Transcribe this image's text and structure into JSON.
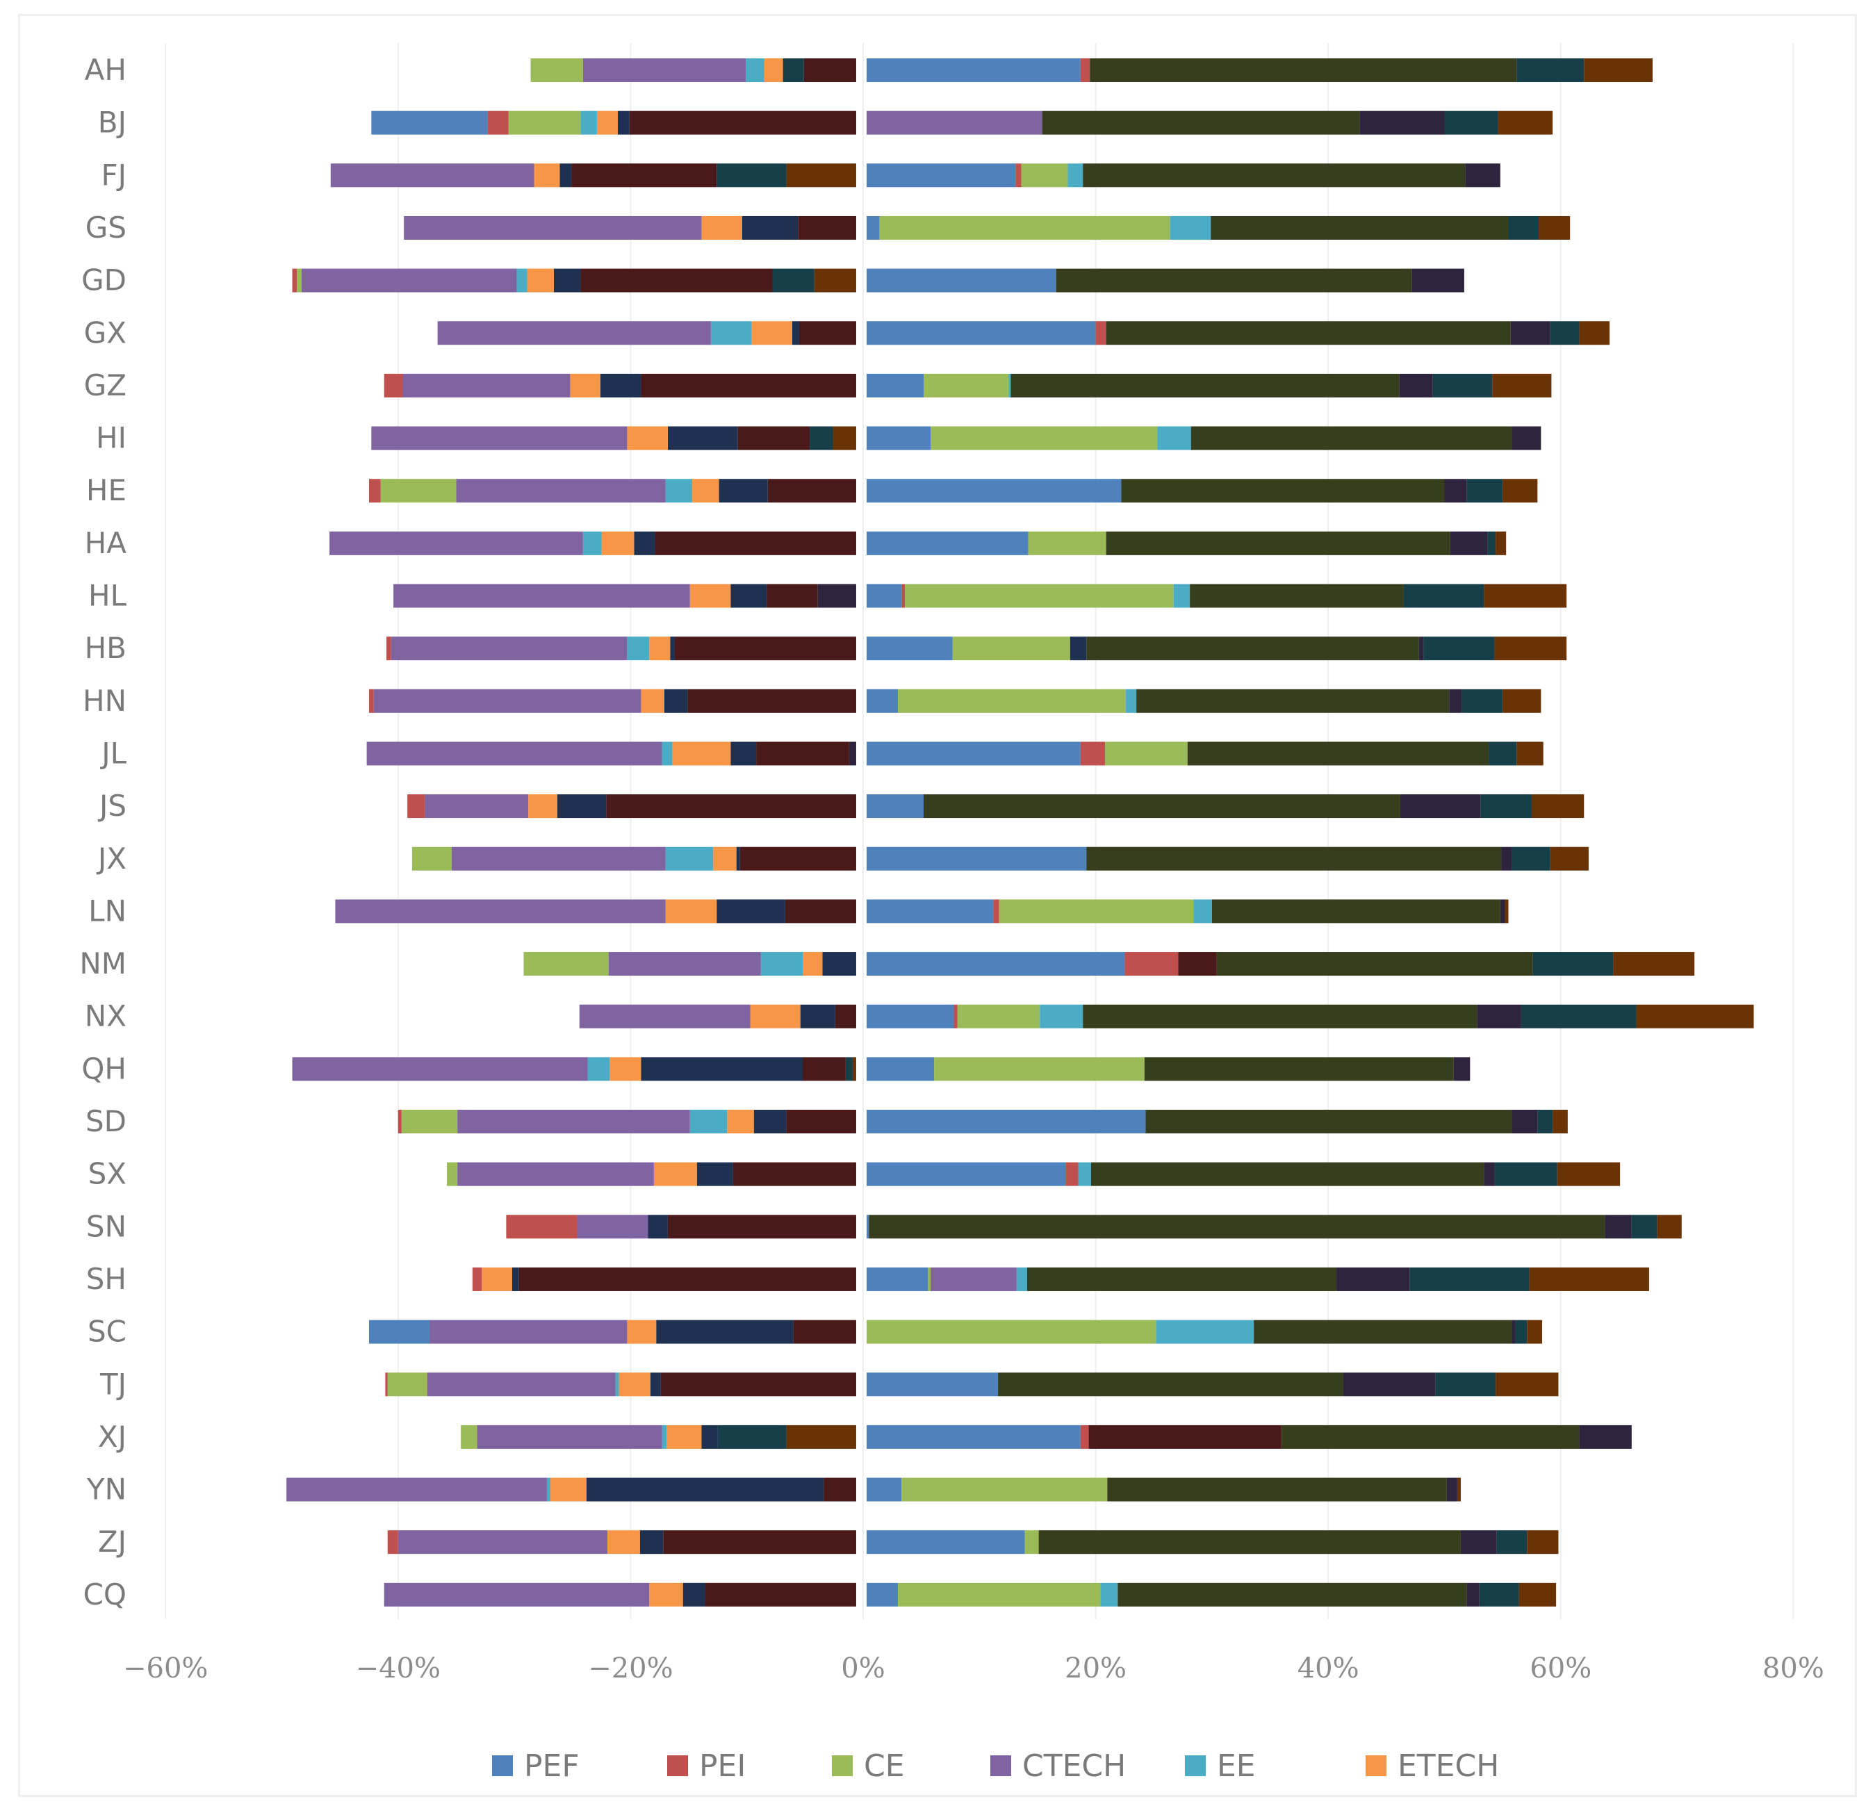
{
  "chart_data": {
    "type": "bar",
    "orientation": "horizontal",
    "stacked": true,
    "xlim": [
      -60,
      80
    ],
    "x_ticks": [
      "−60%",
      "−40%",
      "−20%",
      "0%",
      "20%",
      "40%",
      "60%",
      "80%"
    ],
    "x_tick_values": [
      -60,
      -40,
      -20,
      0,
      20,
      40,
      60,
      80
    ],
    "grid": "vertical",
    "legend_position": "bottom",
    "legend": [
      "PEF",
      "PEI",
      "CE",
      "CTECH",
      "EE",
      "ETECH"
    ],
    "categories": [
      "AH",
      "BJ",
      "FJ",
      "GS",
      "GD",
      "GX",
      "GZ",
      "HI",
      "HE",
      "HA",
      "HL",
      "HB",
      "HN",
      "JL",
      "JS",
      "JX",
      "LN",
      "NM",
      "NX",
      "QH",
      "SD",
      "SX",
      "SN",
      "SH",
      "SC",
      "TJ",
      "XJ",
      "YN",
      "ZJ",
      "CQ"
    ],
    "series_colors": [
      "#4f81bd",
      "#c0504d",
      "#9bbb59",
      "#8064a2",
      "#4bacc6",
      "#f79646",
      "#1f3150",
      "#4a1a1a",
      "#2e243e",
      "#173f4a",
      "#363e1e",
      "#6a3305"
    ],
    "negative_segments": [
      [
        [
          7,
          4.5
        ],
        [
          9,
          1.8
        ],
        [
          5,
          1.6
        ],
        [
          4,
          1.6
        ],
        [
          3,
          14
        ],
        [
          2,
          4.5
        ]
      ],
      [
        [
          7,
          19.5
        ],
        [
          6,
          1
        ],
        [
          5,
          1.8
        ],
        [
          4,
          1.4
        ],
        [
          2,
          6.2
        ],
        [
          1,
          1.8
        ],
        [
          0,
          10
        ]
      ],
      [
        [
          11,
          6
        ],
        [
          9,
          6
        ],
        [
          7,
          12.5
        ],
        [
          6,
          1
        ],
        [
          5,
          2.2
        ],
        [
          3,
          17.5
        ]
      ],
      [
        [
          7,
          5
        ],
        [
          6,
          4.8
        ],
        [
          5,
          3.5
        ],
        [
          3,
          25.6
        ]
      ],
      [
        [
          11,
          3.6
        ],
        [
          9,
          3.6
        ],
        [
          7,
          16.5
        ],
        [
          6,
          2.3
        ],
        [
          5,
          2.3
        ],
        [
          4,
          0.9
        ],
        [
          3,
          18.5
        ],
        [
          2,
          0.4
        ],
        [
          1,
          0.4
        ]
      ],
      [
        [
          7,
          4.9
        ],
        [
          6,
          0.6
        ],
        [
          5,
          3.5
        ],
        [
          4,
          3.5
        ],
        [
          3,
          23.5
        ]
      ],
      [
        [
          7,
          18.5
        ],
        [
          6,
          3.5
        ],
        [
          5,
          2.6
        ],
        [
          3,
          14.4
        ],
        [
          1,
          1.6
        ]
      ],
      [
        [
          11,
          2
        ],
        [
          9,
          2
        ],
        [
          7,
          6.2
        ],
        [
          6,
          6
        ],
        [
          5,
          3.5
        ],
        [
          3,
          22
        ]
      ],
      [
        [
          7,
          7.6
        ],
        [
          6,
          4.2
        ],
        [
          5,
          2.3
        ],
        [
          4,
          2.3
        ],
        [
          3,
          18
        ],
        [
          2,
          6.5
        ],
        [
          1,
          1
        ]
      ],
      [
        [
          7,
          17.3
        ],
        [
          6,
          1.8
        ],
        [
          5,
          2.8
        ],
        [
          4,
          1.6
        ],
        [
          3,
          21.8
        ]
      ],
      [
        [
          8,
          3.3
        ],
        [
          7,
          4.4
        ],
        [
          6,
          3.1
        ],
        [
          5,
          3.5
        ],
        [
          3,
          25.5
        ]
      ],
      [
        [
          7,
          15.6
        ],
        [
          6,
          0.4
        ],
        [
          5,
          1.8
        ],
        [
          4,
          1.9
        ],
        [
          3,
          20.3
        ],
        [
          1,
          0.4
        ]
      ],
      [
        [
          7,
          14.5
        ],
        [
          6,
          2
        ],
        [
          5,
          2
        ],
        [
          3,
          23
        ],
        [
          1,
          0.4
        ]
      ],
      [
        [
          8,
          0.6
        ],
        [
          7,
          8
        ],
        [
          6,
          2.2
        ],
        [
          5,
          5
        ],
        [
          4,
          0.9
        ],
        [
          3,
          25.4
        ]
      ],
      [
        [
          7,
          21.5
        ],
        [
          6,
          4.2
        ],
        [
          5,
          2.5
        ],
        [
          3,
          8.9
        ],
        [
          1,
          1.5
        ]
      ],
      [
        [
          7,
          10
        ],
        [
          6,
          0.3
        ],
        [
          5,
          2
        ],
        [
          4,
          4.1
        ],
        [
          3,
          18.4
        ],
        [
          2,
          3.4
        ]
      ],
      [
        [
          7,
          6.1
        ],
        [
          6,
          5.9
        ],
        [
          5,
          4.4
        ],
        [
          3,
          28.4
        ]
      ],
      [
        [
          6,
          2.9
        ],
        [
          5,
          1.7
        ],
        [
          4,
          3.6
        ],
        [
          3,
          13.1
        ],
        [
          2,
          7.3
        ]
      ],
      [
        [
          7,
          1.8
        ],
        [
          6,
          3
        ],
        [
          5,
          4.3
        ],
        [
          3,
          14.7
        ]
      ],
      [
        [
          11,
          0.3
        ],
        [
          9,
          0.6
        ],
        [
          7,
          3.7
        ],
        [
          6,
          13.9
        ],
        [
          5,
          2.7
        ],
        [
          4,
          1.9
        ],
        [
          3,
          25.4
        ]
      ],
      [
        [
          7,
          6
        ],
        [
          6,
          2.8
        ],
        [
          5,
          2.3
        ],
        [
          4,
          3.2
        ],
        [
          3,
          20
        ],
        [
          2,
          4.8
        ],
        [
          1,
          0.3
        ]
      ],
      [
        [
          7,
          10.6
        ],
        [
          6,
          3.1
        ],
        [
          5,
          3.7
        ],
        [
          3,
          16.9
        ],
        [
          2,
          0.9
        ]
      ],
      [
        [
          7,
          16.2
        ],
        [
          6,
          1.7
        ],
        [
          3,
          6.1
        ],
        [
          1,
          6.1
        ]
      ],
      [
        [
          7,
          29
        ],
        [
          6,
          0.6
        ],
        [
          5,
          2.6
        ],
        [
          1,
          0.8
        ]
      ],
      [
        [
          7,
          5.4
        ],
        [
          6,
          11.8
        ],
        [
          5,
          2.5
        ],
        [
          3,
          17
        ],
        [
          0,
          5.2
        ]
      ],
      [
        [
          7,
          16.8
        ],
        [
          6,
          0.9
        ],
        [
          5,
          2.7
        ],
        [
          4,
          0.3
        ],
        [
          3,
          16.2
        ],
        [
          2,
          3.4
        ],
        [
          1,
          0.2
        ]
      ],
      [
        [
          11,
          6
        ],
        [
          9,
          5.9
        ],
        [
          6,
          1.4
        ],
        [
          5,
          3
        ],
        [
          4,
          0.4
        ],
        [
          3,
          15.9
        ],
        [
          2,
          1.4
        ]
      ],
      [
        [
          7,
          2.8
        ],
        [
          6,
          20.4
        ],
        [
          5,
          3.1
        ],
        [
          4,
          0.3
        ],
        [
          3,
          22.4
        ]
      ],
      [
        [
          7,
          16.6
        ],
        [
          6,
          2
        ],
        [
          5,
          2.8
        ],
        [
          3,
          18
        ],
        [
          1,
          0.9
        ]
      ],
      [
        [
          7,
          13
        ],
        [
          6,
          1.9
        ],
        [
          5,
          2.9
        ],
        [
          3,
          22.8
        ]
      ]
    ],
    "positive_segments": [
      [
        [
          0,
          18.4
        ],
        [
          1,
          0.8
        ],
        [
          10,
          36.7
        ],
        [
          9,
          5.8
        ],
        [
          11,
          5.9
        ]
      ],
      [
        [
          3,
          15.1
        ],
        [
          10,
          27.3
        ],
        [
          8,
          7.3
        ],
        [
          9,
          4.6
        ],
        [
          11,
          4.7
        ]
      ],
      [
        [
          0,
          12.8
        ],
        [
          1,
          0.5
        ],
        [
          2,
          4
        ],
        [
          4,
          1.3
        ],
        [
          10,
          32.9
        ],
        [
          8,
          3
        ]
      ],
      [
        [
          0,
          1.1
        ],
        [
          2,
          25
        ],
        [
          4,
          3.5
        ],
        [
          10,
          25.6
        ],
        [
          9,
          2.6
        ],
        [
          11,
          2.7
        ]
      ],
      [
        [
          0,
          16.3
        ],
        [
          10,
          30.6
        ],
        [
          8,
          4.5
        ]
      ],
      [
        [
          0,
          19.7
        ],
        [
          1,
          0.9
        ],
        [
          10,
          34.8
        ],
        [
          8,
          3.4
        ],
        [
          9,
          2.5
        ],
        [
          11,
          2.6
        ]
      ],
      [
        [
          0,
          4.9
        ],
        [
          2,
          7.3
        ],
        [
          4,
          0.2
        ],
        [
          10,
          33.4
        ],
        [
          8,
          2.9
        ],
        [
          9,
          5.1
        ],
        [
          11,
          5.1
        ]
      ],
      [
        [
          0,
          5.5
        ],
        [
          2,
          19.5
        ],
        [
          4,
          2.9
        ],
        [
          10,
          27.6
        ],
        [
          8,
          2.5
        ]
      ],
      [
        [
          0,
          21.9
        ],
        [
          10,
          27.8
        ],
        [
          8,
          1.9
        ],
        [
          9,
          3.1
        ],
        [
          11,
          3
        ]
      ],
      [
        [
          0,
          13.9
        ],
        [
          2,
          6.7
        ],
        [
          10,
          29.6
        ],
        [
          8,
          3.2
        ],
        [
          9,
          0.7
        ],
        [
          11,
          0.9
        ]
      ],
      [
        [
          0,
          3
        ],
        [
          1,
          0.3
        ],
        [
          2,
          23.1
        ],
        [
          4,
          1.4
        ],
        [
          10,
          18.4
        ],
        [
          9,
          6.9
        ],
        [
          11,
          7.1
        ]
      ],
      [
        [
          0,
          7.4
        ],
        [
          2,
          10.1
        ],
        [
          6,
          1.4
        ],
        [
          10,
          28.6
        ],
        [
          8,
          0.4
        ],
        [
          9,
          6.1
        ],
        [
          11,
          6.2
        ]
      ],
      [
        [
          0,
          2.7
        ],
        [
          2,
          19.6
        ],
        [
          4,
          0.9
        ],
        [
          10,
          26.9
        ],
        [
          8,
          1.1
        ],
        [
          9,
          3.5
        ],
        [
          11,
          3.3
        ]
      ],
      [
        [
          0,
          18.4
        ],
        [
          1,
          2.1
        ],
        [
          2,
          7.1
        ],
        [
          10,
          25.9
        ],
        [
          9,
          2.4
        ],
        [
          11,
          2.3
        ]
      ],
      [
        [
          0,
          4.9
        ],
        [
          10,
          41
        ],
        [
          8,
          6.9
        ],
        [
          9,
          4.4
        ],
        [
          11,
          4.5
        ]
      ],
      [
        [
          0,
          18.9
        ],
        [
          10,
          35.7
        ],
        [
          8,
          0.9
        ],
        [
          9,
          3.3
        ],
        [
          11,
          3.3
        ]
      ],
      [
        [
          0,
          10.9
        ],
        [
          1,
          0.5
        ],
        [
          2,
          16.7
        ],
        [
          4,
          1.6
        ],
        [
          10,
          24.8
        ],
        [
          8,
          0.4
        ],
        [
          11,
          0.3
        ]
      ],
      [
        [
          0,
          22.2
        ],
        [
          1,
          4.6
        ],
        [
          7,
          3.3
        ],
        [
          10,
          27.2
        ],
        [
          9,
          6.9
        ],
        [
          11,
          7
        ]
      ],
      [
        [
          0,
          7.5
        ],
        [
          1,
          0.3
        ],
        [
          2,
          7.1
        ],
        [
          4,
          3.7
        ],
        [
          10,
          33.9
        ],
        [
          8,
          3.8
        ],
        [
          9,
          9.9
        ],
        [
          11,
          10.1
        ]
      ],
      [
        [
          0,
          5.8
        ],
        [
          2,
          18.1
        ],
        [
          10,
          26.6
        ],
        [
          8,
          1.4
        ]
      ],
      [
        [
          0,
          24
        ],
        [
          10,
          31.5
        ],
        [
          8,
          2.2
        ],
        [
          9,
          1.3
        ],
        [
          11,
          1.3
        ]
      ],
      [
        [
          0,
          17.1
        ],
        [
          1,
          1.1
        ],
        [
          4,
          1.1
        ],
        [
          10,
          33.8
        ],
        [
          8,
          0.9
        ],
        [
          9,
          5.4
        ],
        [
          11,
          5.4
        ]
      ],
      [
        [
          0,
          0.2
        ],
        [
          10,
          63.3
        ],
        [
          8,
          2.3
        ],
        [
          9,
          2.2
        ],
        [
          11,
          2.1
        ]
      ],
      [
        [
          0,
          5.3
        ],
        [
          2,
          0.2
        ],
        [
          3,
          7.4
        ],
        [
          4,
          0.9
        ],
        [
          10,
          26.6
        ],
        [
          8,
          6.3
        ],
        [
          9,
          10.3
        ],
        [
          11,
          10.3
        ]
      ],
      [
        [
          2,
          24.9
        ],
        [
          4,
          8.4
        ],
        [
          10,
          22.2
        ],
        [
          8,
          0.3
        ],
        [
          9,
          1
        ],
        [
          11,
          1.3
        ]
      ],
      [
        [
          0,
          11.3
        ],
        [
          10,
          29.7
        ],
        [
          8,
          7.9
        ],
        [
          9,
          5.2
        ],
        [
          11,
          5.4
        ]
      ],
      [
        [
          0,
          18.4
        ],
        [
          1,
          0.7
        ],
        [
          7,
          16.6
        ],
        [
          10,
          25.6
        ],
        [
          8,
          4.5
        ]
      ],
      [
        [
          0,
          3
        ],
        [
          2,
          17.7
        ],
        [
          10,
          29.2
        ],
        [
          8,
          0.9
        ],
        [
          11,
          0.3
        ]
      ],
      [
        [
          0,
          13.6
        ],
        [
          2,
          1.2
        ],
        [
          10,
          36.3
        ],
        [
          8,
          3.1
        ],
        [
          9,
          2.6
        ],
        [
          11,
          2.7
        ]
      ],
      [
        [
          0,
          2.7
        ],
        [
          2,
          17.4
        ],
        [
          4,
          1.5
        ],
        [
          10,
          30
        ],
        [
          8,
          1.1
        ],
        [
          9,
          3.4
        ],
        [
          11,
          3.2
        ]
      ]
    ]
  }
}
